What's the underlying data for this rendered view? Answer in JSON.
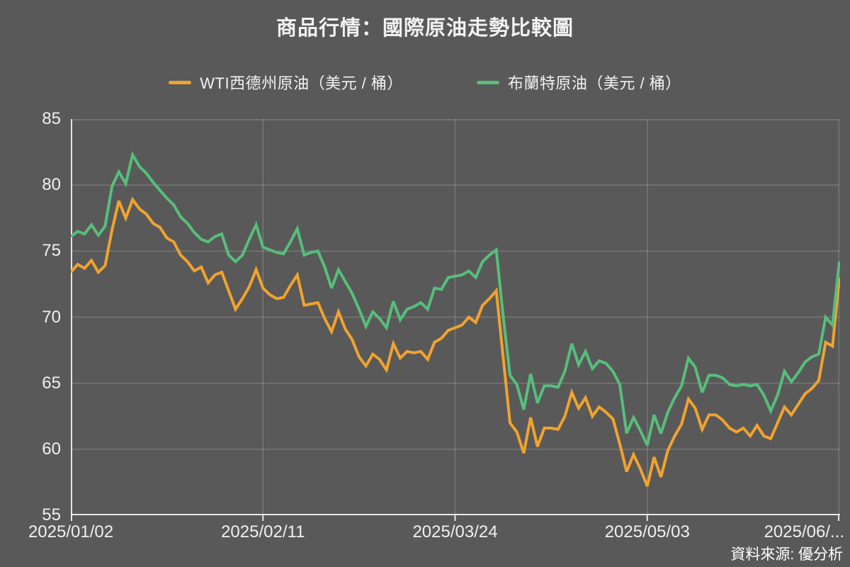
{
  "title": "商品行情：國際原油走勢比較圖",
  "source_note": "資料來源: 優分析",
  "colors": {
    "background": "#595959",
    "text": "#F2F2F2",
    "gridline": "rgba(255,255,255,0.18)",
    "axis": "rgba(255,255,255,0.85)",
    "wti": "#F0A32F",
    "brent": "#57BE7C"
  },
  "legend": {
    "wti_label": "WTI西德州原油（美元 / 桶）",
    "brent_label": "布蘭特原油（美元 / 桶）"
  },
  "chart_data": {
    "type": "line",
    "title": "商品行情：國際原油走勢比較圖",
    "xlabel": "",
    "ylabel": "",
    "ylim": [
      55,
      85
    ],
    "y_ticks": [
      55,
      60,
      65,
      70,
      75,
      80,
      85
    ],
    "grid": true,
    "legend_position": "top",
    "x_tick_labels": [
      "2025/01/02",
      "2025/02/11",
      "2025/03/24",
      "2025/05/03",
      "2025/06/..."
    ],
    "x_tick_indices": [
      0,
      28,
      56,
      84,
      112
    ],
    "series": [
      {
        "name": "WTI西德州原油（美元 / 桶）",
        "color": "#F0A32F",
        "values": [
          73.4,
          74.0,
          73.7,
          74.3,
          73.4,
          73.9,
          76.6,
          78.8,
          77.5,
          78.9,
          78.2,
          77.8,
          77.1,
          76.8,
          76.0,
          75.7,
          74.7,
          74.2,
          73.5,
          73.8,
          72.6,
          73.2,
          73.4,
          72.0,
          70.6,
          71.4,
          72.3,
          73.6,
          72.2,
          71.7,
          71.4,
          71.5,
          72.4,
          73.2,
          70.9,
          71.0,
          71.1,
          69.9,
          68.9,
          70.4,
          69.1,
          68.3,
          67.0,
          66.3,
          67.2,
          66.8,
          66.0,
          68.0,
          66.9,
          67.4,
          67.3,
          67.4,
          66.8,
          68.1,
          68.4,
          69.0,
          69.2,
          69.4,
          70.0,
          69.6,
          70.9,
          71.4,
          72.0,
          67.0,
          62.0,
          61.3,
          59.7,
          62.4,
          60.2,
          61.6,
          61.6,
          61.5,
          62.5,
          64.3,
          63.1,
          63.9,
          62.5,
          63.2,
          62.8,
          62.3,
          60.4,
          58.3,
          59.6,
          58.5,
          57.2,
          59.4,
          57.9,
          59.9,
          61.0,
          61.9,
          63.8,
          63.1,
          61.5,
          62.6,
          62.6,
          62.2,
          61.6,
          61.3,
          61.6,
          61.0,
          61.8,
          61.0,
          60.8,
          62.0,
          63.2,
          62.6,
          63.4,
          64.2,
          64.6,
          65.2,
          68.1,
          67.8,
          73.0
        ]
      },
      {
        "name": "布蘭特原油（美元 / 桶）",
        "color": "#57BE7C",
        "values": [
          76.1,
          76.5,
          76.3,
          77.0,
          76.2,
          76.9,
          79.9,
          81.0,
          80.1,
          82.3,
          81.4,
          80.9,
          80.2,
          79.6,
          79.0,
          78.5,
          77.6,
          77.1,
          76.4,
          75.9,
          75.7,
          76.1,
          76.3,
          74.7,
          74.2,
          74.7,
          75.9,
          77.0,
          75.3,
          75.1,
          74.9,
          74.8,
          75.7,
          76.7,
          74.7,
          74.9,
          75.0,
          73.8,
          72.2,
          73.6,
          72.7,
          71.8,
          70.6,
          69.3,
          70.4,
          69.9,
          69.2,
          71.2,
          69.8,
          70.6,
          70.8,
          71.1,
          70.6,
          72.2,
          72.1,
          73.0,
          73.1,
          73.2,
          73.5,
          73.0,
          74.2,
          74.7,
          75.1,
          70.1,
          65.6,
          64.9,
          63.0,
          65.7,
          63.5,
          64.8,
          64.8,
          64.7,
          65.9,
          68.0,
          66.4,
          67.4,
          66.1,
          66.7,
          66.5,
          65.9,
          64.9,
          61.2,
          62.4,
          61.4,
          60.3,
          62.6,
          61.2,
          62.8,
          63.9,
          64.8,
          66.9,
          66.2,
          64.3,
          65.6,
          65.6,
          65.4,
          64.9,
          64.8,
          64.9,
          64.8,
          64.9,
          64.1,
          62.9,
          64.1,
          65.9,
          65.1,
          65.8,
          66.6,
          67.0,
          67.2,
          70.0,
          69.4,
          74.2
        ]
      }
    ]
  }
}
